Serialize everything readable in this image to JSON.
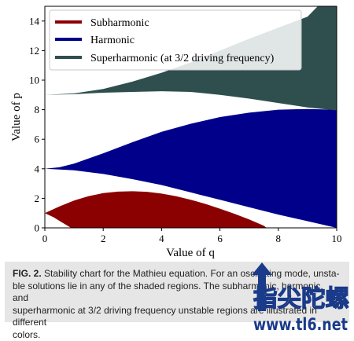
{
  "chart_data": {
    "type": "area",
    "xlabel": "Value of q",
    "ylabel": "Value of p",
    "xlim": [
      0,
      10
    ],
    "ylim": [
      0,
      15
    ],
    "xticks": [
      0,
      2,
      4,
      6,
      8,
      10
    ],
    "yticks": [
      0,
      2,
      4,
      6,
      8,
      10,
      12,
      14
    ],
    "grid": false,
    "legend_position": "top-left",
    "series": [
      {
        "name": "Subharmonic",
        "color": "#8b0000",
        "upper": [
          {
            "q": 0,
            "p": 1.0
          },
          {
            "q": 0.5,
            "p": 1.45
          },
          {
            "q": 1,
            "p": 1.85
          },
          {
            "q": 1.5,
            "p": 2.15
          },
          {
            "q": 2,
            "p": 2.35
          },
          {
            "q": 2.5,
            "p": 2.45
          },
          {
            "q": 3,
            "p": 2.48
          },
          {
            "q": 3.5,
            "p": 2.44
          },
          {
            "q": 4,
            "p": 2.32
          },
          {
            "q": 4.5,
            "p": 2.14
          },
          {
            "q": 5,
            "p": 1.9
          },
          {
            "q": 5.5,
            "p": 1.62
          },
          {
            "q": 6,
            "p": 1.3
          },
          {
            "q": 6.5,
            "p": 0.95
          },
          {
            "q": 7,
            "p": 0.57
          },
          {
            "q": 7.5,
            "p": 0.15
          },
          {
            "q": 7.6,
            "p": 0
          }
        ],
        "lower": [
          {
            "q": 0,
            "p": 1.0
          },
          {
            "q": 0.3,
            "p": 0.72
          },
          {
            "q": 0.6,
            "p": 0.35
          },
          {
            "q": 0.9,
            "p": 0
          }
        ]
      },
      {
        "name": "Harmonic",
        "color": "#00008b",
        "upper": [
          {
            "q": 0,
            "p": 4.0
          },
          {
            "q": 0.5,
            "p": 4.1
          },
          {
            "q": 1,
            "p": 4.35
          },
          {
            "q": 2,
            "p": 5.05
          },
          {
            "q": 3,
            "p": 5.8
          },
          {
            "q": 4,
            "p": 6.5
          },
          {
            "q": 5,
            "p": 7.05
          },
          {
            "q": 6,
            "p": 7.5
          },
          {
            "q": 7,
            "p": 7.8
          },
          {
            "q": 8,
            "p": 8.0
          },
          {
            "q": 9,
            "p": 8.05
          },
          {
            "q": 10,
            "p": 8.0
          }
        ],
        "lower": [
          {
            "q": 0,
            "p": 4.0
          },
          {
            "q": 1,
            "p": 3.9
          },
          {
            "q": 2,
            "p": 3.65
          },
          {
            "q": 3,
            "p": 3.3
          },
          {
            "q": 4,
            "p": 2.9
          },
          {
            "q": 5,
            "p": 2.4
          },
          {
            "q": 6,
            "p": 1.9
          },
          {
            "q": 7,
            "p": 1.4
          },
          {
            "q": 8,
            "p": 0.9
          },
          {
            "q": 9,
            "p": 0.45
          },
          {
            "q": 10,
            "p": 0.0
          }
        ]
      },
      {
        "name": "Superharmonic (at 3/2 driving frequency)",
        "color": "#2f4f4f",
        "upper": [
          {
            "q": 0,
            "p": 9.0
          },
          {
            "q": 1,
            "p": 9.1
          },
          {
            "q": 2,
            "p": 9.4
          },
          {
            "q": 3,
            "p": 9.9
          },
          {
            "q": 4,
            "p": 10.5
          },
          {
            "q": 5,
            "p": 11.2
          },
          {
            "q": 6,
            "p": 12.0
          },
          {
            "q": 7,
            "p": 12.8
          },
          {
            "q": 8,
            "p": 13.55
          },
          {
            "q": 9,
            "p": 14.3
          },
          {
            "q": 9.35,
            "p": 15.0
          },
          {
            "q": 10,
            "p": 15.0
          }
        ],
        "lower": [
          {
            "q": 0,
            "p": 9.0
          },
          {
            "q": 1,
            "p": 9.05
          },
          {
            "q": 2,
            "p": 9.15
          },
          {
            "q": 3,
            "p": 9.2
          },
          {
            "q": 4,
            "p": 9.25
          },
          {
            "q": 5,
            "p": 9.2
          },
          {
            "q": 6,
            "p": 9.0
          },
          {
            "q": 7,
            "p": 8.75
          },
          {
            "q": 8,
            "p": 8.45
          },
          {
            "q": 9,
            "p": 8.15
          },
          {
            "q": 10,
            "p": 7.95
          }
        ]
      }
    ]
  },
  "caption": {
    "label": "FIG. 2.",
    "line1": " Stability chart for the Mathieu equation. For an oscillating mode, unsta-",
    "line2": "ble solutions lie in any of the shaded regions. The subharmonic, harmonic, and",
    "line3": "superharmonic at 3/2 driving frequency unstable regions are illustrated in different",
    "line4": "colors."
  },
  "watermark": {
    "text": "指尖陀螺",
    "url": "www.tl6.net"
  }
}
